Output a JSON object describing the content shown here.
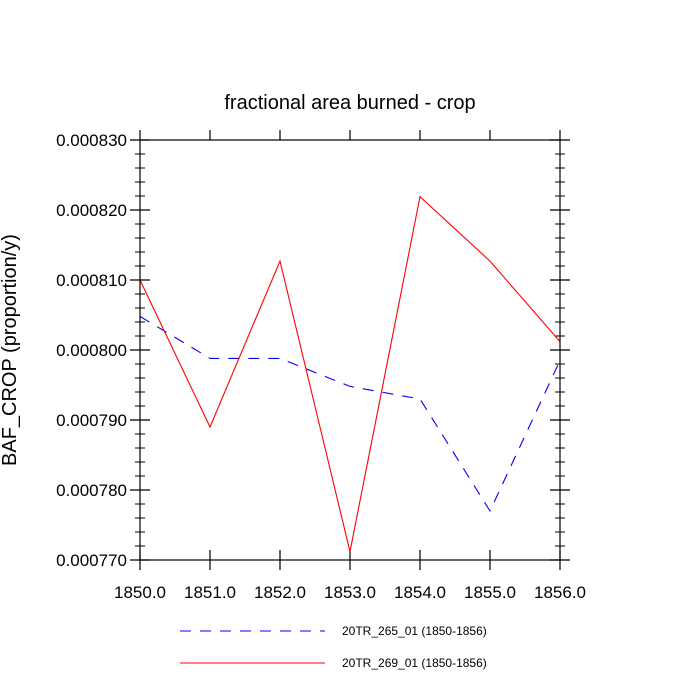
{
  "chart_data": {
    "type": "line",
    "title": "fractional area burned - crop",
    "xlabel": "",
    "ylabel": "BAF_CROP  (proportion/y)",
    "xlim": [
      1850,
      1856
    ],
    "ylim": [
      0.00077,
      0.00083
    ],
    "x_ticks": [
      "1850.0",
      "1851.0",
      "1852.0",
      "1853.0",
      "1854.0",
      "1855.0",
      "1856.0"
    ],
    "y_ticks": [
      "0.000770",
      "0.000780",
      "0.000790",
      "0.000800",
      "0.000810",
      "0.000820",
      "0.000830"
    ],
    "x": [
      1850,
      1851,
      1852,
      1853,
      1854,
      1855,
      1856
    ],
    "grid": false,
    "legend_position": "bottom",
    "series": [
      {
        "name": "20TR_265_01 (1850-1856)",
        "color": "#0000ff",
        "dash": "dashed",
        "values": [
          0.0008048,
          0.0007988,
          0.0007988,
          0.0007948,
          0.000793,
          0.000777,
          0.0007985
        ]
      },
      {
        "name": "20TR_269_01 (1850-1856)",
        "color": "#ff0000",
        "dash": "solid",
        "values": [
          0.00081,
          0.000789,
          0.0008127,
          0.0007712,
          0.0008219,
          0.0008127,
          0.0008012
        ]
      }
    ]
  }
}
